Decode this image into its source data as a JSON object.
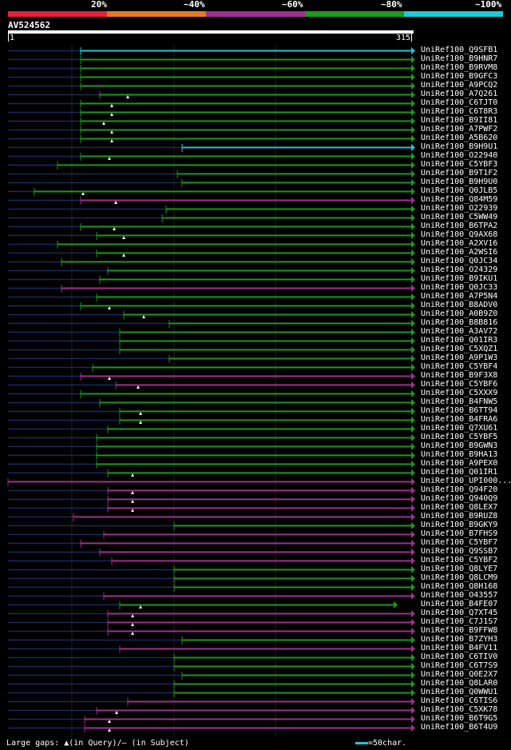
{
  "legend": {
    "segments": [
      {
        "label": "20%",
        "color": "#e8203a"
      },
      {
        "label": "~40%",
        "color": "#e87820"
      },
      {
        "label": "~60%",
        "color": "#a03090"
      },
      {
        "label": "~80%",
        "color": "#1c9a1c"
      },
      {
        "label": "~100%",
        "color": "#1ec8d8"
      }
    ]
  },
  "query": {
    "name": "AV524562",
    "start": "1",
    "end": "315"
  },
  "colors": {
    "green": "#1c9a1c",
    "purple": "#a03090",
    "cyan": "#1ec8d8",
    "navy": "#1a2a60",
    "gap_marker": "#ffffff"
  },
  "hits": [
    {
      "name": "UniRef100_Q9SFB1",
      "color": "cyan"
    },
    {
      "name": "UniRef100_B9HNR7",
      "color": "green"
    },
    {
      "name": "UniRef100_B9RVM8",
      "color": "green"
    },
    {
      "name": "UniRef100_B9GFC3",
      "color": "green"
    },
    {
      "name": "UniRef100_A9PCQ2",
      "color": "green"
    },
    {
      "name": "UniRef100_A7Q261",
      "color": "green"
    },
    {
      "name": "UniRef100_C6TJT0",
      "color": "green"
    },
    {
      "name": "UniRef100_C6T8R3",
      "color": "green"
    },
    {
      "name": "UniRef100_B9II81",
      "color": "green"
    },
    {
      "name": "UniRef100_A7PWF2",
      "color": "green"
    },
    {
      "name": "UniRef100_A5B620",
      "color": "green"
    },
    {
      "name": "UniRef100_B9H9U1",
      "color": "cyan"
    },
    {
      "name": "UniRef100_O22940",
      "color": "green"
    },
    {
      "name": "UniRef100_C5YBF3",
      "color": "green"
    },
    {
      "name": "UniRef100_B9T1F2",
      "color": "green"
    },
    {
      "name": "UniRef100_B9H9U0",
      "color": "green"
    },
    {
      "name": "UniRef100_Q0JLB5",
      "color": "green"
    },
    {
      "name": "UniRef100_Q84M59",
      "color": "purple"
    },
    {
      "name": "UniRef100_O22939",
      "color": "green"
    },
    {
      "name": "UniRef100_C5WW49",
      "color": "green"
    },
    {
      "name": "UniRef100_B6TPA2",
      "color": "green"
    },
    {
      "name": "UniRef100_Q9AX68",
      "color": "green"
    },
    {
      "name": "UniRef100_A2XV16",
      "color": "green"
    },
    {
      "name": "UniRef100_A2WSI6",
      "color": "green"
    },
    {
      "name": "UniRef100_Q0JC34",
      "color": "green"
    },
    {
      "name": "UniRef100_O24329",
      "color": "green"
    },
    {
      "name": "UniRef100_B9IKU1",
      "color": "green"
    },
    {
      "name": "UniRef100_Q0JC33",
      "color": "purple"
    },
    {
      "name": "UniRef100_A7P5N4",
      "color": "green"
    },
    {
      "name": "UniRef100_B8ADV0",
      "color": "green"
    },
    {
      "name": "UniRef100_A0B9Z0",
      "color": "green"
    },
    {
      "name": "UniRef100_B8B816",
      "color": "green"
    },
    {
      "name": "UniRef100_A3AV72",
      "color": "green"
    },
    {
      "name": "UniRef100_Q01IR3",
      "color": "green"
    },
    {
      "name": "UniRef100_C5XQZ1",
      "color": "green"
    },
    {
      "name": "UniRef100_A9P1W3",
      "color": "green"
    },
    {
      "name": "UniRef100_C5YBF4",
      "color": "green"
    },
    {
      "name": "UniRef100_B9F3X8",
      "color": "purple"
    },
    {
      "name": "UniRef100_C5YBF6",
      "color": "purple"
    },
    {
      "name": "UniRef100_C5XXX9",
      "color": "green"
    },
    {
      "name": "UniRef100_B4FNW5",
      "color": "green"
    },
    {
      "name": "UniRef100_B6TT94",
      "color": "green"
    },
    {
      "name": "UniRef100_B4FRA6",
      "color": "green"
    },
    {
      "name": "UniRef100_Q7XU61",
      "color": "green"
    },
    {
      "name": "UniRef100_C5YBF5",
      "color": "green"
    },
    {
      "name": "UniRef100_B9GWN3",
      "color": "green"
    },
    {
      "name": "UniRef100_B9HA13",
      "color": "green"
    },
    {
      "name": "UniRef100_A9PEX0",
      "color": "green"
    },
    {
      "name": "UniRef100_Q01IR1",
      "color": "green"
    },
    {
      "name": "UniRef100_UPI000...",
      "color": "purple"
    },
    {
      "name": "UniRef100_Q94F20",
      "color": "purple"
    },
    {
      "name": "UniRef100_Q940Q9",
      "color": "purple"
    },
    {
      "name": "UniRef100_Q8LEX7",
      "color": "purple"
    },
    {
      "name": "UniRef100_B9RUZ8",
      "color": "purple"
    },
    {
      "name": "UniRef100_B9GKY9",
      "color": "green"
    },
    {
      "name": "UniRef100_B7FHS9",
      "color": "purple"
    },
    {
      "name": "UniRef100_C5YBF7",
      "color": "purple"
    },
    {
      "name": "UniRef100_Q9SSB7",
      "color": "purple"
    },
    {
      "name": "UniRef100_C5YBF2",
      "color": "purple"
    },
    {
      "name": "UniRef100_Q8LYE7",
      "color": "green"
    },
    {
      "name": "UniRef100_Q8LCM9",
      "color": "green"
    },
    {
      "name": "UniRef100_Q8H168",
      "color": "green"
    },
    {
      "name": "UniRef100_O43557",
      "color": "purple"
    },
    {
      "name": "UniRef100_B4FE07",
      "color": "green"
    },
    {
      "name": "UniRef100_Q7XT45",
      "color": "purple"
    },
    {
      "name": "UniRef100_C7J1S7",
      "color": "purple"
    },
    {
      "name": "UniRef100_B9FFW8",
      "color": "purple"
    },
    {
      "name": "UniRef100_B7ZYH3",
      "color": "green"
    },
    {
      "name": "UniRef100_B4FV11",
      "color": "purple"
    },
    {
      "name": "UniRef100_C6TIV0",
      "color": "green"
    },
    {
      "name": "UniRef100_C6T7S9",
      "color": "green"
    },
    {
      "name": "UniRef100_Q0E2X7",
      "color": "green"
    },
    {
      "name": "UniRef100_Q8LAR0",
      "color": "green"
    },
    {
      "name": "UniRef100_Q0WWU1",
      "color": "green"
    },
    {
      "name": "UniRef100_C6TIS6",
      "color": "purple"
    },
    {
      "name": "UniRef100_C5XK78",
      "color": "purple"
    },
    {
      "name": "UniRef100_B6T9G5",
      "color": "purple"
    },
    {
      "name": "UniRef100_B6T4U9",
      "color": "purple"
    }
  ],
  "footer": {
    "gaps_text": "Large gaps: ▲(in Query)/– (in Subject)",
    "scale_text": "=50char."
  }
}
